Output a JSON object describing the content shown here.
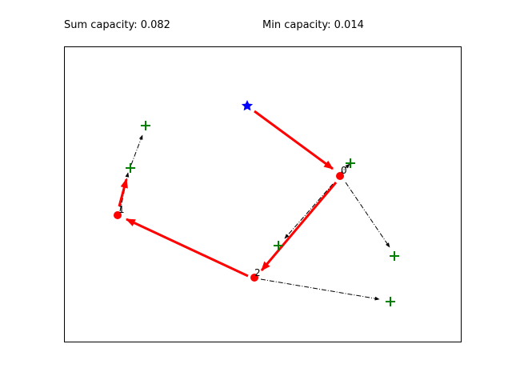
{
  "header": {
    "sum_capacity": "Sum capacity: 0.082",
    "min_capacity": "Min capacity: 0.014"
  },
  "colors": {
    "route": "#ff0000",
    "node": "#ff0000",
    "target": "#008000",
    "start": "#0000ff",
    "arrow": "#000000"
  },
  "diagram": {
    "nodes": [
      {
        "id": "0",
        "label": "0"
      },
      {
        "id": "1",
        "label": "1"
      },
      {
        "id": "2",
        "label": "2"
      }
    ],
    "start_marker": "star-marker",
    "target_marker": "plus-marker"
  }
}
